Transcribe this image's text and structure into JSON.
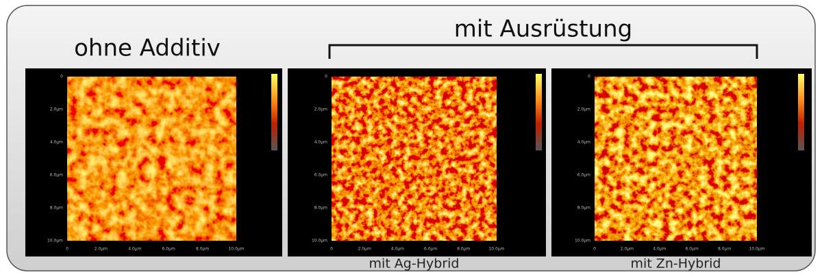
{
  "header": {
    "left": "ohne Additiv",
    "right": "mit Ausrüstung"
  },
  "axes": {
    "y": [
      "0",
      "2.0µm",
      "4.0µm",
      "6.0µm",
      "8.0µm",
      "10.0µm"
    ],
    "x": [
      "0",
      "2.0µm",
      "4.0µm",
      "6.0µm",
      "8.0µm",
      "10.0µm"
    ]
  },
  "panels": [
    {},
    {
      "caption": "mit Ag-Hybrid"
    },
    {
      "caption": "mit Zn-Hybrid"
    }
  ]
}
